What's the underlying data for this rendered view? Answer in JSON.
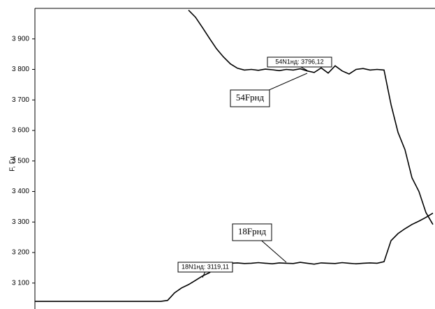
{
  "chart_data": {
    "type": "line",
    "ylabel": "F, Гц",
    "ylim": [
      3015,
      4000
    ],
    "yticks": [
      {
        "value": 3100,
        "label": "3 100"
      },
      {
        "value": 3200,
        "label": "3 200"
      },
      {
        "value": 3300,
        "label": "3 300"
      },
      {
        "value": 3400,
        "label": "3 400"
      },
      {
        "value": 3500,
        "label": "3 500"
      },
      {
        "value": 3600,
        "label": "3 600"
      },
      {
        "value": 3700,
        "label": "3 700"
      },
      {
        "value": 3800,
        "label": "3 800"
      },
      {
        "value": 3900,
        "label": "3 900"
      }
    ],
    "grid": false,
    "series": [
      {
        "name": "54Fрнд",
        "color": "#000000",
        "values": [
          null,
          null,
          null,
          null,
          null,
          null,
          null,
          null,
          null,
          null,
          null,
          null,
          null,
          null,
          null,
          null,
          null,
          null,
          null,
          null,
          null,
          null,
          3994,
          3971,
          3937,
          3902,
          3868,
          3841,
          3818,
          3804,
          3798,
          3800,
          3797,
          3801,
          3799,
          3796,
          3800,
          3798,
          3802,
          3795,
          3790,
          3805,
          3788,
          3812,
          3795,
          3785,
          3800,
          3803,
          3798,
          3800,
          3798,
          3685,
          3594,
          3537,
          3445,
          3400,
          3331,
          3292
        ]
      },
      {
        "name": "18Fрнд",
        "color": "#000000",
        "values": [
          3040,
          3040,
          3040,
          3040,
          3040,
          3040,
          3040,
          3040,
          3040,
          3040,
          3040,
          3040,
          3040,
          3040,
          3040,
          3040,
          3040,
          3040,
          3040,
          3043,
          3068,
          3084,
          3095,
          3109,
          3123,
          3134,
          3155,
          3164,
          3165,
          3166,
          3164,
          3165,
          3167,
          3165,
          3163,
          3166,
          3165,
          3164,
          3168,
          3165,
          3162,
          3166,
          3165,
          3164,
          3167,
          3165,
          3163,
          3165,
          3166,
          3165,
          3170,
          3239,
          3262,
          3278,
          3292,
          3303,
          3315,
          3329
        ]
      }
    ],
    "annotations": [
      {
        "text": "54N1нд: 3796,12"
      },
      {
        "text": "18N1нд: 3119,11"
      }
    ]
  }
}
